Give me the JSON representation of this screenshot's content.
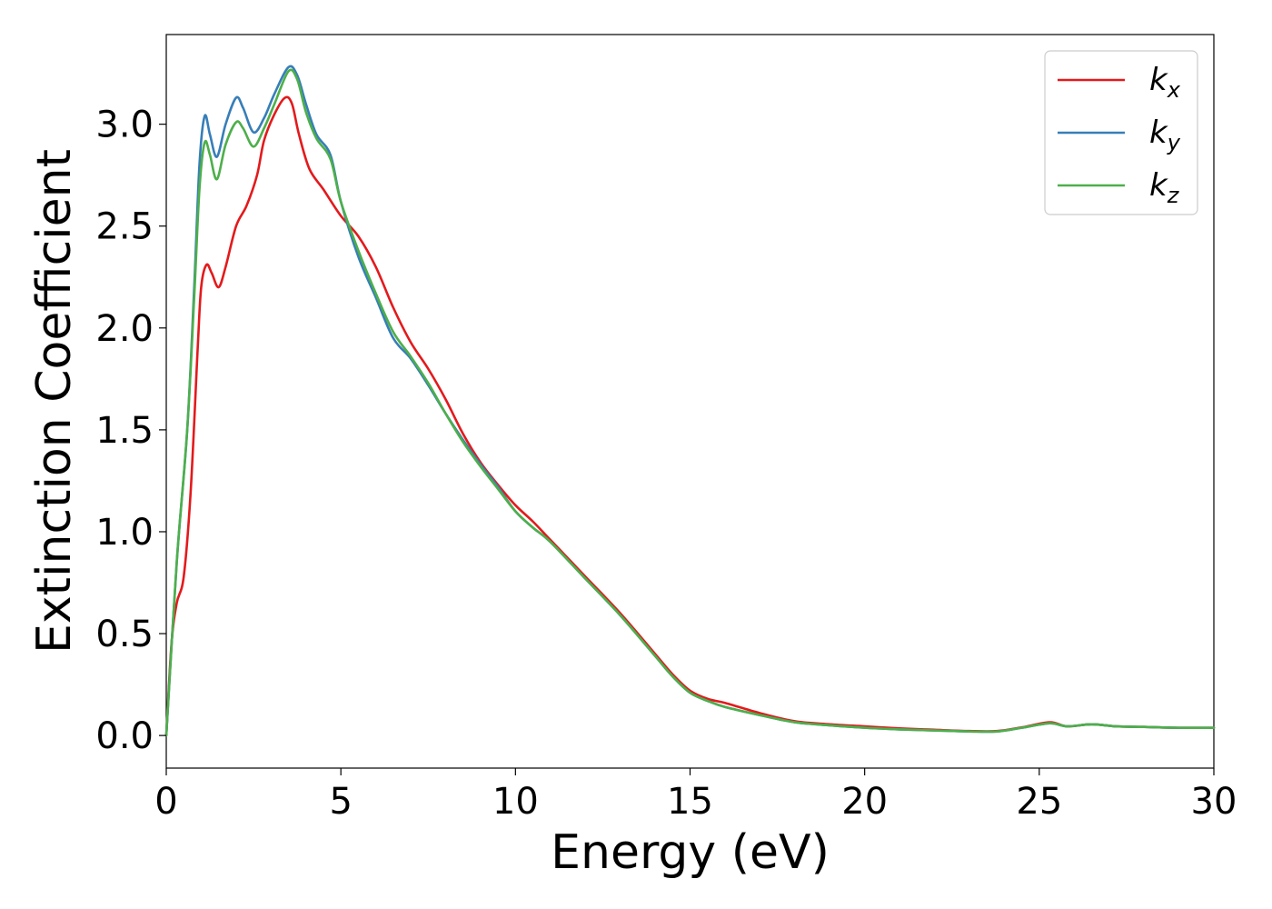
{
  "chart_data": {
    "type": "line",
    "title": "",
    "xlabel": "Energy (eV)",
    "ylabel": "Extinction Coefficient",
    "xlim": [
      0,
      30
    ],
    "ylim": [
      -0.16,
      3.44
    ],
    "xticks": [
      0,
      5,
      10,
      15,
      20,
      25,
      30
    ],
    "xtick_labels": [
      "0",
      "5",
      "10",
      "15",
      "20",
      "25",
      "30"
    ],
    "yticks": [
      0.0,
      0.5,
      1.0,
      1.5,
      2.0,
      2.5,
      3.0
    ],
    "ytick_labels": [
      "0.0",
      "0.5",
      "1.0",
      "1.5",
      "2.0",
      "2.5",
      "3.0"
    ],
    "grid": false,
    "legend_position": "top-right",
    "series": [
      {
        "name": "k_x",
        "label_main": "k",
        "label_sub": "x",
        "color": "#e31a1c",
        "points": [
          [
            0,
            0
          ],
          [
            0.15,
            0.45
          ],
          [
            0.3,
            0.65
          ],
          [
            0.5,
            0.78
          ],
          [
            0.7,
            1.2
          ],
          [
            0.9,
            1.9
          ],
          [
            1.0,
            2.2
          ],
          [
            1.15,
            2.31
          ],
          [
            1.3,
            2.27
          ],
          [
            1.5,
            2.2
          ],
          [
            1.7,
            2.3
          ],
          [
            2.0,
            2.5
          ],
          [
            2.3,
            2.6
          ],
          [
            2.6,
            2.75
          ],
          [
            2.8,
            2.92
          ],
          [
            3.1,
            3.05
          ],
          [
            3.4,
            3.13
          ],
          [
            3.6,
            3.1
          ],
          [
            3.8,
            2.95
          ],
          [
            4.1,
            2.78
          ],
          [
            4.5,
            2.68
          ],
          [
            5.0,
            2.55
          ],
          [
            5.5,
            2.45
          ],
          [
            6.0,
            2.3
          ],
          [
            6.5,
            2.1
          ],
          [
            7.0,
            1.93
          ],
          [
            7.5,
            1.8
          ],
          [
            8.0,
            1.65
          ],
          [
            8.5,
            1.48
          ],
          [
            9.0,
            1.34
          ],
          [
            9.5,
            1.23
          ],
          [
            10.0,
            1.13
          ],
          [
            10.5,
            1.05
          ],
          [
            11.0,
            0.96
          ],
          [
            12.0,
            0.78
          ],
          [
            13.0,
            0.6
          ],
          [
            14.0,
            0.4
          ],
          [
            14.5,
            0.3
          ],
          [
            15.0,
            0.22
          ],
          [
            15.5,
            0.18
          ],
          [
            16.0,
            0.16
          ],
          [
            17.0,
            0.11
          ],
          [
            18.0,
            0.07
          ],
          [
            19.0,
            0.055
          ],
          [
            20.0,
            0.045
          ],
          [
            21.0,
            0.035
          ],
          [
            22.0,
            0.028
          ],
          [
            23.0,
            0.022
          ],
          [
            23.8,
            0.022
          ],
          [
            24.5,
            0.04
          ],
          [
            25.3,
            0.065
          ],
          [
            25.8,
            0.045
          ],
          [
            26.5,
            0.055
          ],
          [
            27.2,
            0.045
          ],
          [
            28.0,
            0.042
          ],
          [
            29.0,
            0.038
          ],
          [
            30.0,
            0.038
          ]
        ]
      },
      {
        "name": "k_y",
        "label_main": "k",
        "label_sub": "y",
        "color": "#377eb8",
        "points": [
          [
            0,
            0
          ],
          [
            0.3,
            0.85
          ],
          [
            0.6,
            1.5
          ],
          [
            0.8,
            2.2
          ],
          [
            0.95,
            2.8
          ],
          [
            1.1,
            3.04
          ],
          [
            1.25,
            2.95
          ],
          [
            1.45,
            2.84
          ],
          [
            1.7,
            3.0
          ],
          [
            2.0,
            3.13
          ],
          [
            2.2,
            3.08
          ],
          [
            2.5,
            2.96
          ],
          [
            2.8,
            3.03
          ],
          [
            3.1,
            3.15
          ],
          [
            3.5,
            3.28
          ],
          [
            3.75,
            3.24
          ],
          [
            4.0,
            3.1
          ],
          [
            4.3,
            2.95
          ],
          [
            4.7,
            2.85
          ],
          [
            5.0,
            2.62
          ],
          [
            5.5,
            2.35
          ],
          [
            6.0,
            2.15
          ],
          [
            6.5,
            1.95
          ],
          [
            7.0,
            1.85
          ],
          [
            7.5,
            1.72
          ],
          [
            8.0,
            1.58
          ],
          [
            8.5,
            1.45
          ],
          [
            9.0,
            1.33
          ],
          [
            9.5,
            1.22
          ],
          [
            10.0,
            1.1
          ],
          [
            10.5,
            1.02
          ],
          [
            11.0,
            0.95
          ],
          [
            12.0,
            0.77
          ],
          [
            13.0,
            0.59
          ],
          [
            14.0,
            0.39
          ],
          [
            14.5,
            0.29
          ],
          [
            15.0,
            0.21
          ],
          [
            15.5,
            0.17
          ],
          [
            16.0,
            0.14
          ],
          [
            17.0,
            0.1
          ],
          [
            18.0,
            0.065
          ],
          [
            19.0,
            0.05
          ],
          [
            20.0,
            0.038
          ],
          [
            21.0,
            0.03
          ],
          [
            22.0,
            0.025
          ],
          [
            23.0,
            0.02
          ],
          [
            23.8,
            0.02
          ],
          [
            24.5,
            0.038
          ],
          [
            25.3,
            0.06
          ],
          [
            25.8,
            0.045
          ],
          [
            26.5,
            0.055
          ],
          [
            27.2,
            0.045
          ],
          [
            28.0,
            0.042
          ],
          [
            29.0,
            0.038
          ],
          [
            30.0,
            0.038
          ]
        ]
      },
      {
        "name": "k_z",
        "label_main": "k",
        "label_sub": "z",
        "color": "#4daf4a",
        "points": [
          [
            0,
            0
          ],
          [
            0.3,
            0.85
          ],
          [
            0.6,
            1.5
          ],
          [
            0.8,
            2.15
          ],
          [
            0.95,
            2.68
          ],
          [
            1.1,
            2.91
          ],
          [
            1.25,
            2.85
          ],
          [
            1.45,
            2.73
          ],
          [
            1.7,
            2.9
          ],
          [
            2.0,
            3.01
          ],
          [
            2.2,
            2.98
          ],
          [
            2.5,
            2.89
          ],
          [
            2.8,
            2.98
          ],
          [
            3.1,
            3.1
          ],
          [
            3.5,
            3.26
          ],
          [
            3.75,
            3.22
          ],
          [
            4.0,
            3.06
          ],
          [
            4.3,
            2.93
          ],
          [
            4.7,
            2.83
          ],
          [
            5.0,
            2.62
          ],
          [
            5.5,
            2.38
          ],
          [
            6.0,
            2.17
          ],
          [
            6.5,
            1.98
          ],
          [
            7.0,
            1.86
          ],
          [
            7.5,
            1.73
          ],
          [
            8.0,
            1.58
          ],
          [
            8.5,
            1.44
          ],
          [
            9.0,
            1.32
          ],
          [
            9.5,
            1.21
          ],
          [
            10.0,
            1.1
          ],
          [
            10.5,
            1.02
          ],
          [
            11.0,
            0.95
          ],
          [
            12.0,
            0.77
          ],
          [
            13.0,
            0.59
          ],
          [
            14.0,
            0.39
          ],
          [
            14.5,
            0.29
          ],
          [
            15.0,
            0.21
          ],
          [
            15.5,
            0.17
          ],
          [
            16.0,
            0.14
          ],
          [
            17.0,
            0.1
          ],
          [
            18.0,
            0.065
          ],
          [
            19.0,
            0.05
          ],
          [
            20.0,
            0.038
          ],
          [
            21.0,
            0.03
          ],
          [
            22.0,
            0.025
          ],
          [
            23.0,
            0.02
          ],
          [
            23.8,
            0.02
          ],
          [
            24.5,
            0.038
          ],
          [
            25.3,
            0.06
          ],
          [
            25.8,
            0.045
          ],
          [
            26.5,
            0.055
          ],
          [
            27.2,
            0.045
          ],
          [
            28.0,
            0.042
          ],
          [
            29.0,
            0.038
          ],
          [
            30.0,
            0.038
          ]
        ]
      }
    ]
  }
}
